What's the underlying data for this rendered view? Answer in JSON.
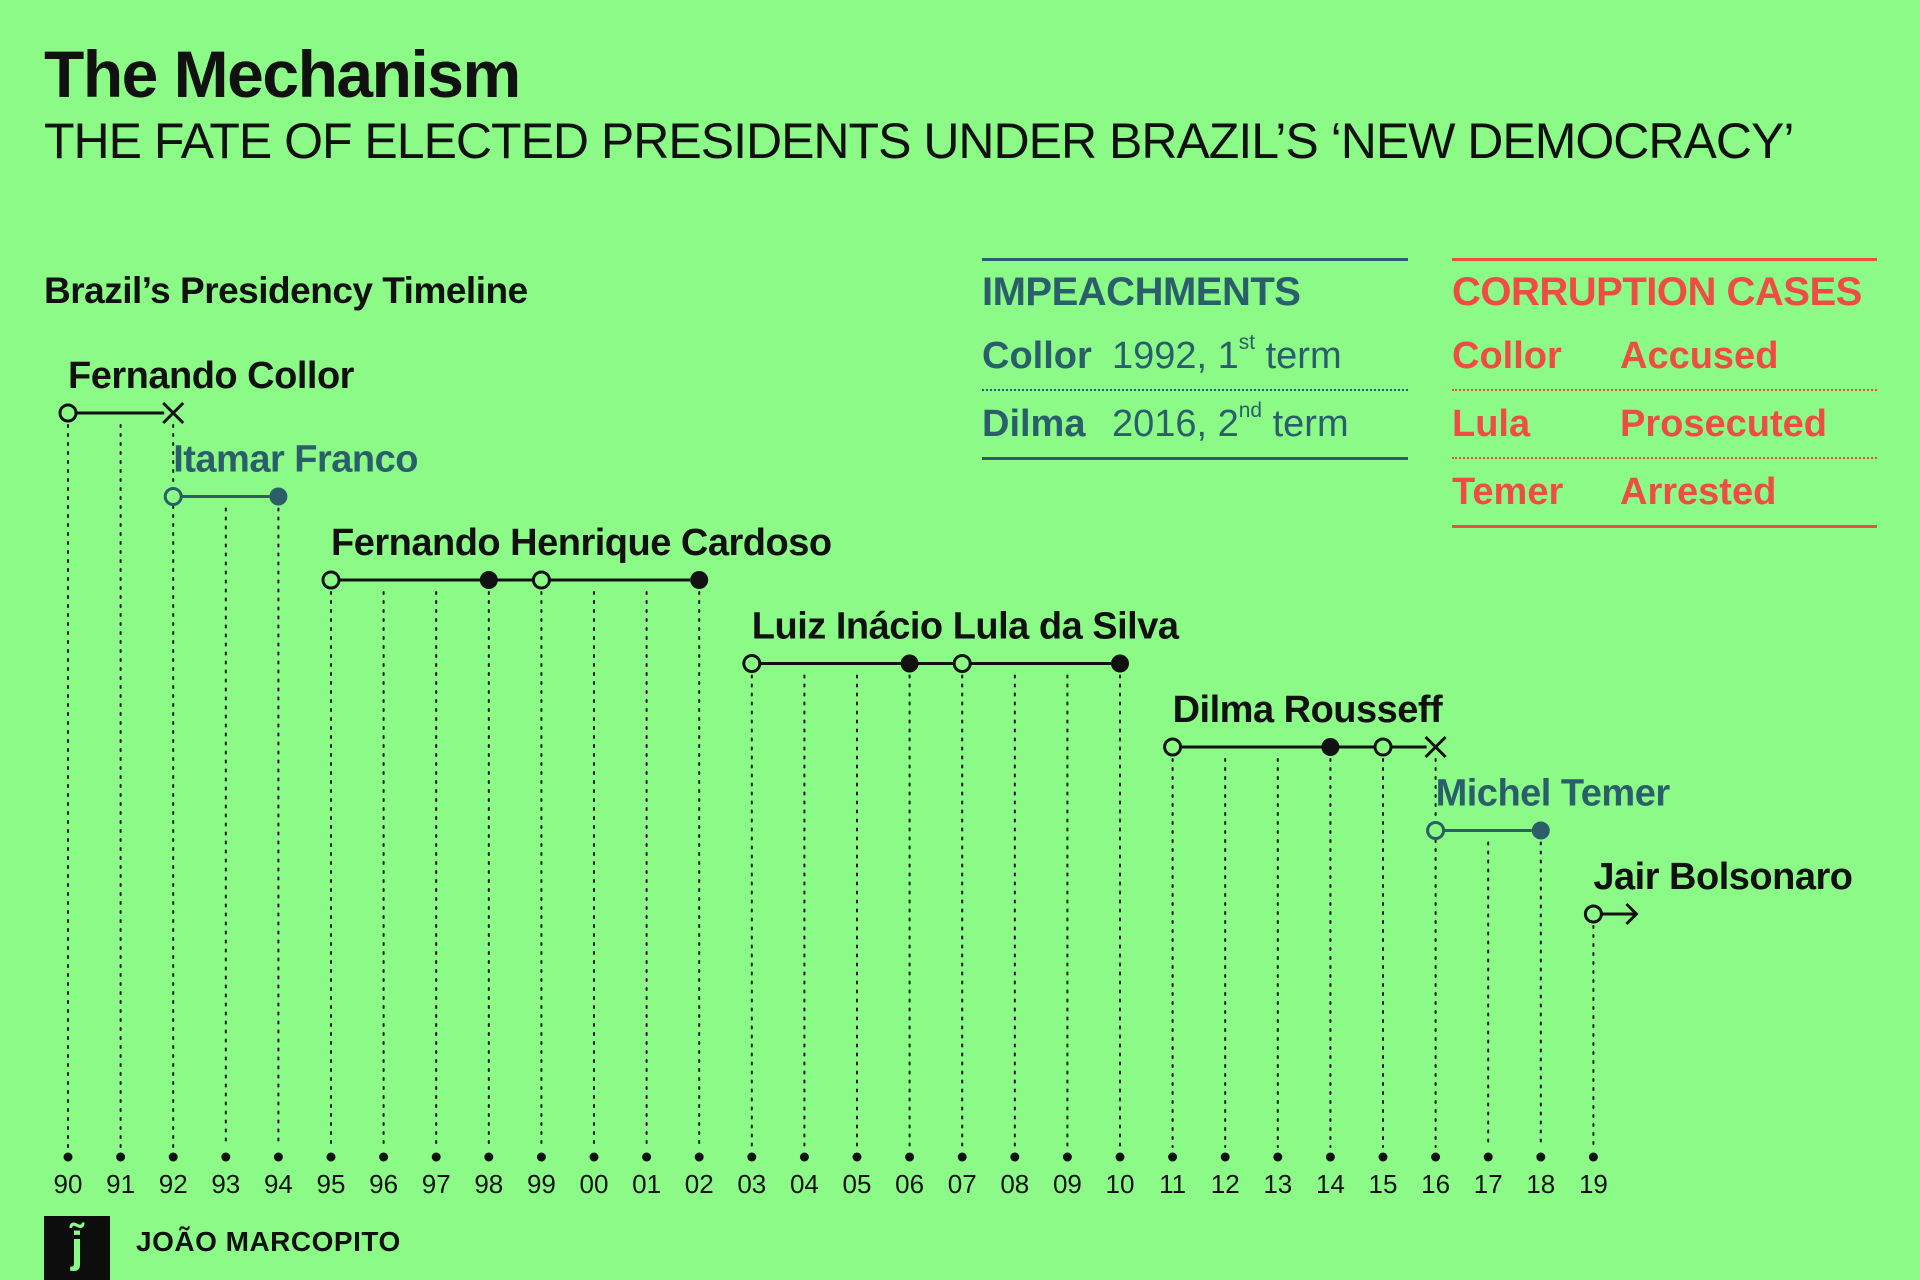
{
  "title": "The Mechanism",
  "subtitle": "THE FATE OF ELECTED PRESIDENTS UNDER BRAZIL’S ‘NEW DEMOCRACY’",
  "timeline_heading": "Brazil’s Presidency Timeline",
  "chart_data": {
    "type": "timeline",
    "x_ticks": [
      "90",
      "91",
      "92",
      "93",
      "94",
      "95",
      "96",
      "97",
      "98",
      "99",
      "00",
      "01",
      "02",
      "03",
      "04",
      "05",
      "06",
      "07",
      "08",
      "09",
      "10",
      "11",
      "12",
      "13",
      "14",
      "15",
      "16",
      "17",
      "18",
      "19"
    ],
    "colors": {
      "elected": "#111111",
      "successor": "#2b5e6b"
    },
    "presidents": [
      {
        "name": "Fernando Collor",
        "start": 0,
        "end": 2,
        "end_marker": "x",
        "color": "elected",
        "mid_points": []
      },
      {
        "name": "Itamar Franco",
        "start": 2,
        "end": 4,
        "end_marker": "filled",
        "color": "successor",
        "mid_points": []
      },
      {
        "name": "Fernando Henrique Cardoso",
        "start": 5,
        "end": 12,
        "end_marker": "filled",
        "color": "elected",
        "mid_points": [
          {
            "idx": 8,
            "type": "filled"
          },
          {
            "idx": 9,
            "type": "open"
          }
        ]
      },
      {
        "name": "Luiz Inácio Lula da Silva",
        "start": 13,
        "end": 20,
        "end_marker": "filled",
        "color": "elected",
        "mid_points": [
          {
            "idx": 16,
            "type": "filled"
          },
          {
            "idx": 17,
            "type": "open"
          }
        ]
      },
      {
        "name": "Dilma Rousseff",
        "start": 21,
        "end": 26,
        "end_marker": "x",
        "color": "elected",
        "mid_points": [
          {
            "idx": 24,
            "type": "filled"
          },
          {
            "idx": 25,
            "type": "open"
          }
        ]
      },
      {
        "name": "Michel Temer",
        "start": 26,
        "end": 28,
        "end_marker": "filled",
        "color": "successor",
        "mid_points": []
      },
      {
        "name": "Jair Bolsonaro",
        "start": 29,
        "end": null,
        "end_marker": "arrow",
        "color": "elected",
        "mid_points": []
      }
    ]
  },
  "impeachments": {
    "heading": "IMPEACHMENTS",
    "color": "#2b5e6b",
    "rows": [
      {
        "name": "Collor",
        "year": "1992,",
        "ord_num": "1",
        "ord_suffix": "st",
        "term": "term"
      },
      {
        "name": "Dilma",
        "year": "2016,",
        "ord_num": "2",
        "ord_suffix": "nd",
        "term": "term"
      }
    ]
  },
  "corruption": {
    "heading": "CORRUPTION CASES",
    "color": "#ef4c44",
    "rows": [
      {
        "name": "Collor",
        "status": "Accused"
      },
      {
        "name": "Lula",
        "status": "Prosecuted"
      },
      {
        "name": "Temer",
        "status": "Arrested"
      }
    ]
  },
  "footer": {
    "logo_glyph": "j̃",
    "author": "JOÃO MARCOPITO"
  }
}
